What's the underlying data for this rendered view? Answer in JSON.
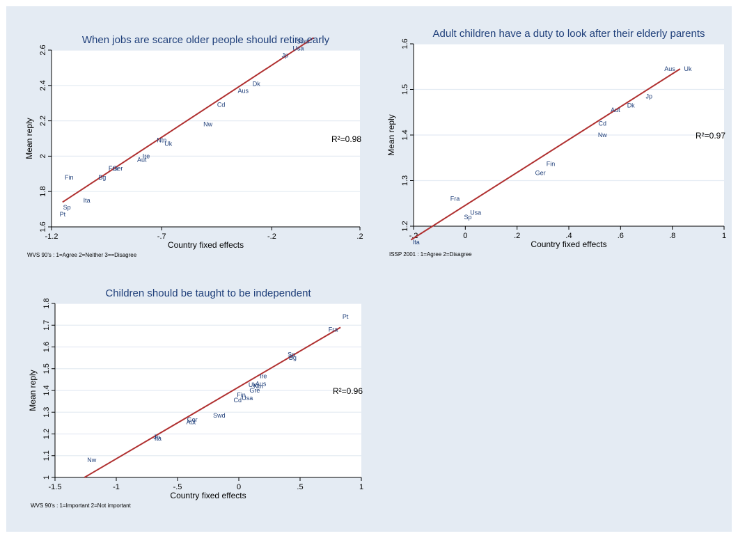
{
  "chart_data": [
    {
      "type": "scatter",
      "title": "When jobs are scarce older people should retire early",
      "xlabel": "Country fixed effects",
      "ylabel": "Mean reply",
      "note": "WVS 90's : 1=Agree  2=Neither  3==Disagree",
      "r2_label": "R²=0.98",
      "xlim": [
        -1.2,
        0.2
      ],
      "ylim": [
        1.6,
        2.6
      ],
      "xticks": [
        -1.2,
        -0.7,
        -0.2,
        0.2
      ],
      "xtick_labels": [
        "-1.2",
        "-.7",
        "-.2",
        ".2"
      ],
      "yticks": [
        1.6,
        1.8,
        2.0,
        2.2,
        2.4,
        2.6
      ],
      "ytick_labels": [
        "1.6",
        "1.8",
        "2",
        "2.2",
        "2.4",
        "2.6"
      ],
      "grid": true,
      "fit_line": [
        [
          -1.15,
          1.74
        ],
        [
          -0.01,
          2.67
        ]
      ],
      "points": [
        {
          "label": "Swd",
          "x": -0.06,
          "y": 2.65
        },
        {
          "label": "Usa",
          "x": -0.08,
          "y": 2.61
        },
        {
          "label": "Jp",
          "x": -0.14,
          "y": 2.57
        },
        {
          "label": "Dk",
          "x": -0.27,
          "y": 2.41
        },
        {
          "label": "Aus",
          "x": -0.33,
          "y": 2.37
        },
        {
          "label": "Cd",
          "x": -0.43,
          "y": 2.29
        },
        {
          "label": "Nw",
          "x": -0.49,
          "y": 2.18
        },
        {
          "label": "Ntn",
          "x": -0.7,
          "y": 2.09
        },
        {
          "label": "Uk",
          "x": -0.67,
          "y": 2.07
        },
        {
          "label": "Ire",
          "x": -0.77,
          "y": 2.0
        },
        {
          "label": "Aut",
          "x": -0.79,
          "y": 1.98
        },
        {
          "label": "Fra",
          "x": -0.92,
          "y": 1.93
        },
        {
          "label": "Ger",
          "x": -0.9,
          "y": 1.93
        },
        {
          "label": "Bg",
          "x": -0.97,
          "y": 1.88
        },
        {
          "label": "Fin",
          "x": -1.12,
          "y": 1.88
        },
        {
          "label": "Ita",
          "x": -1.04,
          "y": 1.75
        },
        {
          "label": "Sp",
          "x": -1.13,
          "y": 1.71
        },
        {
          "label": "Pt",
          "x": -1.15,
          "y": 1.67
        }
      ]
    },
    {
      "type": "scatter",
      "title": "Adult children have a duty to look after their elderly parents",
      "xlabel": "Country fixed effects",
      "ylabel": "Mean reply",
      "note": "ISSP 2001  : 1=Agree  2=Disagree",
      "r2_label": "R²=0.97",
      "xlim": [
        -0.2,
        1.0
      ],
      "ylim": [
        1.2,
        1.6
      ],
      "xticks": [
        -0.2,
        0,
        0.2,
        0.4,
        0.6,
        0.8,
        1.0
      ],
      "xtick_labels": [
        "-.2",
        "0",
        ".2",
        ".4",
        ".6",
        ".8",
        "1"
      ],
      "yticks": [
        1.2,
        1.3,
        1.4,
        1.5,
        1.6
      ],
      "ytick_labels": [
        "1.2",
        "1.3",
        "1.4",
        "1.5",
        "1.6"
      ],
      "grid": true,
      "fit_line": [
        [
          -0.21,
          1.17
        ],
        [
          0.83,
          1.545
        ]
      ],
      "points": [
        {
          "label": "Aus",
          "x": 0.79,
          "y": 1.545
        },
        {
          "label": "Uk",
          "x": 0.86,
          "y": 1.545
        },
        {
          "label": "Jp",
          "x": 0.71,
          "y": 1.485
        },
        {
          "label": "Dk",
          "x": 0.64,
          "y": 1.465
        },
        {
          "label": "Aut",
          "x": 0.58,
          "y": 1.455
        },
        {
          "label": "Cd",
          "x": 0.53,
          "y": 1.425
        },
        {
          "label": "Nw",
          "x": 0.53,
          "y": 1.4
        },
        {
          "label": "Fin",
          "x": 0.33,
          "y": 1.337
        },
        {
          "label": "Ger",
          "x": 0.29,
          "y": 1.317
        },
        {
          "label": "Fra",
          "x": -0.04,
          "y": 1.26
        },
        {
          "label": "Usa",
          "x": 0.04,
          "y": 1.23
        },
        {
          "label": "Sp",
          "x": 0.01,
          "y": 1.22
        },
        {
          "label": "Ita",
          "x": -0.19,
          "y": 1.165
        }
      ]
    },
    {
      "type": "scatter",
      "title": "Children should be taught to be independent",
      "xlabel": "Country fixed effects",
      "ylabel": "Mean reply",
      "note": "WVS 90's  : 1=Important   2=Not important",
      "r2_label": "R²=0.96",
      "xlim": [
        -1.5,
        1.0
      ],
      "ylim": [
        1.0,
        1.8
      ],
      "xticks": [
        -1.5,
        -1.0,
        -0.5,
        0,
        0.5,
        1.0
      ],
      "xtick_labels": [
        "-1.5",
        "-1",
        "-.5",
        "0",
        ".5",
        "1"
      ],
      "yticks": [
        1.0,
        1.1,
        1.2,
        1.3,
        1.4,
        1.5,
        1.6,
        1.7,
        1.8
      ],
      "ytick_labels": [
        "1",
        "1.1",
        "1.2",
        "1.3",
        "1.4",
        "1.5",
        "1.6",
        "1.7",
        "1.8"
      ],
      "grid": true,
      "fit_line": [
        [
          -1.26,
          1.0
        ],
        [
          0.83,
          1.69
        ]
      ],
      "points": [
        {
          "label": "Pt",
          "x": 0.87,
          "y": 1.74
        },
        {
          "label": "Fra",
          "x": 0.77,
          "y": 1.68
        },
        {
          "label": "Sp",
          "x": 0.43,
          "y": 1.565
        },
        {
          "label": "Bg",
          "x": 0.44,
          "y": 1.55
        },
        {
          "label": "Ire",
          "x": 0.2,
          "y": 1.465
        },
        {
          "label": "Aus",
          "x": 0.18,
          "y": 1.43
        },
        {
          "label": "Uk",
          "x": 0.11,
          "y": 1.425
        },
        {
          "label": "Ntn",
          "x": 0.16,
          "y": 1.42
        },
        {
          "label": "Gre",
          "x": 0.13,
          "y": 1.4
        },
        {
          "label": "Fin",
          "x": 0.02,
          "y": 1.38
        },
        {
          "label": "Usa",
          "x": 0.07,
          "y": 1.365
        },
        {
          "label": "Cd",
          "x": -0.01,
          "y": 1.355
        },
        {
          "label": "Swd",
          "x": -0.16,
          "y": 1.285
        },
        {
          "label": "Ger",
          "x": -0.38,
          "y": 1.265
        },
        {
          "label": "Aut",
          "x": -0.39,
          "y": 1.255
        },
        {
          "label": "Jp",
          "x": -0.67,
          "y": 1.185
        },
        {
          "label": "Ita",
          "x": -0.66,
          "y": 1.18
        },
        {
          "label": "Nw",
          "x": -1.2,
          "y": 1.08
        }
      ]
    }
  ],
  "colors": {
    "background": "#e4ebf3",
    "plot_area": "#ffffff",
    "fit_line": "#b03030",
    "marker_label": "#1f3f7a",
    "title": "#1f3f7a",
    "text": "#000000",
    "grid": "#e4ebf3"
  }
}
